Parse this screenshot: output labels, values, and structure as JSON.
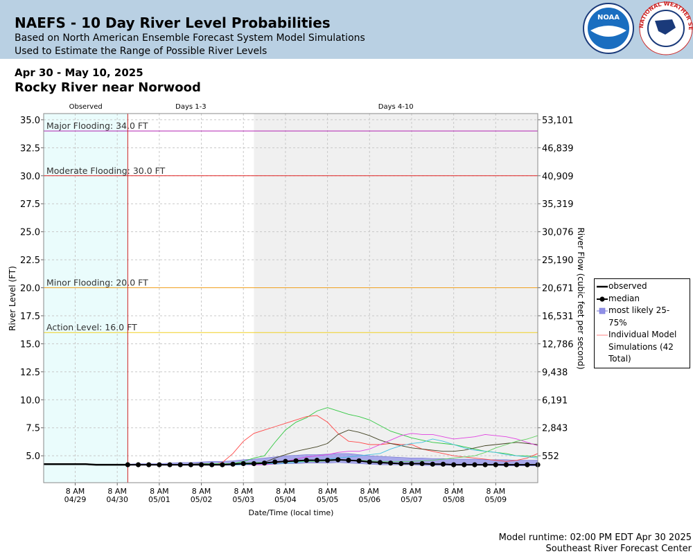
{
  "chart_data": {
    "type": "line",
    "title": "NAEFS - 10 Day River Level Probabilities",
    "subtitles": [
      "Based on North American Ensemble Forecast System Model Simulations",
      "Used to Estimate the Range of Possible River Levels"
    ],
    "noaa_logo": "NOAA",
    "nws_logo": "NATIONAL WEATHER SERVICE",
    "date_range": "Apr 30 - May 10, 2025",
    "location": "Rocky River near Norwood",
    "footer": [
      "Model runtime: 02:00 PM EDT Apr 30 2025",
      "Southeast River Forecast Center"
    ],
    "xlabel": "Date/Time (local time)",
    "ylabel": "River Level (FT)",
    "y2label": "River Flow (cubic feet per second)",
    "xlim": [
      "2025-04-28T14:00",
      "2025-05-10T08:00"
    ],
    "xticks": [
      {
        "value": "2025-04-29T08:00",
        "label": [
          "8 AM",
          "04/29"
        ]
      },
      {
        "value": "2025-04-30T08:00",
        "label": [
          "8 AM",
          "04/30"
        ]
      },
      {
        "value": "2025-05-01T08:00",
        "label": [
          "8 AM",
          "05/01"
        ]
      },
      {
        "value": "2025-05-02T08:00",
        "label": [
          "8 AM",
          "05/02"
        ]
      },
      {
        "value": "2025-05-03T08:00",
        "label": [
          "8 AM",
          "05/03"
        ]
      },
      {
        "value": "2025-05-04T08:00",
        "label": [
          "8 AM",
          "05/04"
        ]
      },
      {
        "value": "2025-05-05T08:00",
        "label": [
          "8 AM",
          "05/05"
        ]
      },
      {
        "value": "2025-05-06T08:00",
        "label": [
          "8 AM",
          "05/06"
        ]
      },
      {
        "value": "2025-05-07T08:00",
        "label": [
          "8 AM",
          "05/07"
        ]
      },
      {
        "value": "2025-05-08T08:00",
        "label": [
          "8 AM",
          "05/08"
        ]
      },
      {
        "value": "2025-05-09T08:00",
        "label": [
          "8 AM",
          "05/09"
        ]
      }
    ],
    "ylim": [
      2.6,
      35.55
    ],
    "yticks": [
      {
        "value": 35,
        "label": "35.0"
      },
      32.5,
      {
        "value": 30,
        "label": "30.0"
      },
      27.5,
      {
        "value": 25,
        "label": "25.0"
      },
      22.5,
      {
        "value": 20,
        "label": "20.0"
      },
      17.5,
      {
        "value": 15,
        "label": "15.0"
      },
      12.5,
      {
        "value": 10,
        "label": "10.0"
      },
      7.5,
      {
        "value": 5,
        "label": "5.0"
      }
    ],
    "y2ticks": [
      {
        "value": 53101,
        "label": "53,101"
      },
      {
        "value": 46839,
        "label": "46,839"
      },
      {
        "value": 40909,
        "label": "40,909"
      },
      {
        "value": 35319,
        "label": "35,319"
      },
      {
        "value": 30076,
        "label": "30,076"
      },
      {
        "value": 25190,
        "label": "25,190"
      },
      {
        "value": 20671,
        "label": "20,671"
      },
      {
        "value": 16531,
        "label": "16,531"
      },
      {
        "value": 12786,
        "label": "12,786"
      },
      {
        "value": 9438,
        "label": "9,438"
      },
      {
        "value": 6191,
        "label": "6,191"
      },
      {
        "value": 2843,
        "label": "2,843"
      },
      552
    ],
    "grid": true,
    "now": "2025-04-30T14:00",
    "now_color": "#cc2222",
    "regions": [
      {
        "label": "Observed",
        "end": "2025-04-30T14:00",
        "color": "#eafcfc"
      },
      {
        "label": "Days 1-3",
        "end": "2025-05-03T14:00",
        "color": "#ffffff"
      },
      {
        "label": "Days 4-10",
        "end": "2025-05-10T08:00",
        "color": "#f0f0f0"
      }
    ],
    "thresholds": [
      {
        "label": "Major Flooding: 34.0 FT",
        "value": 34,
        "color": "#b020b0"
      },
      {
        "label": "Moderate Flooding: 30.0 FT",
        "value": 30,
        "color": "#e02020"
      },
      {
        "label": "Minor Flooding: 20.0 FT",
        "value": 20,
        "color": "#f0a020"
      },
      {
        "label": "Action Level: 16.0 FT",
        "value": 16,
        "color": "#f0d020"
      }
    ],
    "observed": {
      "name": "observed",
      "color": "#000000",
      "x": [
        "2025-04-28T14:00",
        "2025-04-29T14:00",
        "2025-04-29T20:00",
        "2025-04-30T14:00"
      ],
      "values": [
        4.25,
        4.25,
        4.2,
        4.2
      ]
    },
    "x": [
      "2025-04-30T14:00",
      "2025-04-30T20:00",
      "2025-05-01T02:00",
      "2025-05-01T08:00",
      "2025-05-01T14:00",
      "2025-05-01T20:00",
      "2025-05-02T02:00",
      "2025-05-02T08:00",
      "2025-05-02T14:00",
      "2025-05-02T20:00",
      "2025-05-03T02:00",
      "2025-05-03T08:00",
      "2025-05-03T14:00",
      "2025-05-03T20:00",
      "2025-05-04T02:00",
      "2025-05-04T08:00",
      "2025-05-04T14:00",
      "2025-05-04T20:00",
      "2025-05-05T02:00",
      "2025-05-05T08:00",
      "2025-05-05T14:00",
      "2025-05-05T20:00",
      "2025-05-06T02:00",
      "2025-05-06T08:00",
      "2025-05-06T14:00",
      "2025-05-06T20:00",
      "2025-05-07T02:00",
      "2025-05-07T08:00",
      "2025-05-07T14:00",
      "2025-05-07T20:00",
      "2025-05-08T02:00",
      "2025-05-08T08:00",
      "2025-05-08T14:00",
      "2025-05-08T20:00",
      "2025-05-09T02:00",
      "2025-05-09T08:00",
      "2025-05-09T14:00",
      "2025-05-09T20:00",
      "2025-05-10T02:00",
      "2025-05-10T08:00"
    ],
    "median": {
      "name": "median",
      "color": "#000000",
      "values": [
        4.2,
        4.2,
        4.2,
        4.2,
        4.2,
        4.2,
        4.2,
        4.2,
        4.2,
        4.2,
        4.25,
        4.3,
        4.3,
        4.35,
        4.45,
        4.5,
        4.55,
        4.6,
        4.6,
        4.6,
        4.65,
        4.6,
        4.55,
        4.45,
        4.4,
        4.35,
        4.3,
        4.3,
        4.3,
        4.25,
        4.25,
        4.2,
        4.2,
        4.2,
        4.2,
        4.2,
        4.2,
        4.2,
        4.2,
        4.2
      ]
    },
    "band": {
      "name": "most likely 25-75%",
      "color": "#9090e8",
      "low": [
        4.15,
        4.15,
        4.15,
        4.15,
        4.15,
        4.15,
        4.15,
        4.15,
        4.15,
        4.15,
        4.15,
        4.2,
        4.2,
        4.2,
        4.25,
        4.3,
        4.3,
        4.35,
        4.35,
        4.35,
        4.4,
        4.35,
        4.3,
        4.25,
        4.2,
        4.2,
        4.2,
        4.2,
        4.15,
        4.15,
        4.15,
        4.15,
        4.15,
        4.15,
        4.15,
        4.15,
        4.1,
        4.1,
        4.1,
        4.1
      ],
      "high": [
        4.25,
        4.3,
        4.3,
        4.3,
        4.35,
        4.4,
        4.4,
        4.45,
        4.5,
        4.5,
        4.55,
        4.65,
        4.7,
        4.8,
        4.9,
        5.0,
        5.05,
        5.1,
        5.1,
        5.15,
        5.2,
        5.2,
        5.1,
        5.0,
        4.95,
        4.9,
        4.85,
        4.8,
        4.8,
        4.75,
        4.75,
        4.7,
        4.7,
        4.7,
        4.65,
        4.65,
        4.65,
        4.6,
        4.6,
        4.6
      ]
    },
    "simulations": {
      "name": "Individual Model Simulations (42 Total)",
      "color": "#ff8080",
      "series": [
        {
          "color": "#30c840",
          "values": [
            4.2,
            4.2,
            4.2,
            4.2,
            4.2,
            4.2,
            4.2,
            4.2,
            4.2,
            4.2,
            4.3,
            4.5,
            4.8,
            5.0,
            6.2,
            7.3,
            8.0,
            8.4,
            9.0,
            9.3,
            9.0,
            8.7,
            8.5,
            8.2,
            7.7,
            7.2,
            6.9,
            6.6,
            6.4,
            6.2,
            6.1,
            6.0,
            5.8,
            5.6,
            5.4,
            5.3,
            5.2,
            5.0,
            5.0,
            4.9
          ]
        },
        {
          "color": "#ff4848",
          "values": [
            4.2,
            4.2,
            4.2,
            4.2,
            4.2,
            4.2,
            4.2,
            4.2,
            4.2,
            4.4,
            5.2,
            6.3,
            7.0,
            7.3,
            7.6,
            7.9,
            8.2,
            8.5,
            8.6,
            8.0,
            7.0,
            6.3,
            6.2,
            6.0,
            6.0,
            6.1,
            6.0,
            6.0,
            5.6,
            5.4,
            5.2,
            5.0,
            4.9,
            4.8,
            4.7,
            4.6,
            4.5,
            4.6,
            4.8,
            5.2
          ]
        },
        {
          "color": "#404020",
          "values": [
            4.2,
            4.2,
            4.2,
            4.2,
            4.2,
            4.2,
            4.25,
            4.3,
            4.3,
            4.3,
            4.3,
            4.3,
            4.3,
            4.4,
            4.8,
            5.1,
            5.4,
            5.6,
            5.8,
            6.1,
            6.9,
            7.3,
            7.1,
            6.8,
            6.4,
            6.1,
            5.9,
            5.7,
            5.6,
            5.5,
            5.4,
            5.4,
            5.5,
            5.7,
            5.9,
            6.0,
            6.1,
            6.2,
            6.1,
            6.0
          ]
        },
        {
          "color": "#e040e0",
          "values": [
            4.2,
            4.2,
            4.2,
            4.2,
            4.2,
            4.2,
            4.2,
            4.2,
            4.2,
            4.2,
            4.2,
            4.2,
            4.2,
            4.2,
            4.3,
            4.5,
            4.7,
            4.9,
            5.0,
            5.1,
            5.3,
            5.4,
            5.4,
            5.6,
            6.0,
            6.4,
            6.8,
            7.0,
            6.9,
            6.9,
            6.7,
            6.5,
            6.6,
            6.7,
            6.9,
            6.8,
            6.7,
            6.5,
            6.2,
            5.9
          ]
        },
        {
          "color": "#40c0e0",
          "values": [
            4.2,
            4.2,
            4.2,
            4.2,
            4.2,
            4.2,
            4.2,
            4.2,
            4.2,
            4.2,
            4.2,
            4.2,
            4.25,
            4.3,
            4.3,
            4.35,
            4.4,
            4.5,
            4.6,
            4.7,
            4.8,
            4.9,
            5.0,
            5.1,
            5.2,
            5.6,
            5.9,
            6.1,
            6.2,
            6.5,
            6.3,
            6.0,
            5.7,
            5.5,
            5.4,
            5.3,
            5.1,
            5.0,
            4.9,
            4.8
          ]
        },
        {
          "color": "#60d060",
          "values": [
            4.2,
            4.2,
            4.2,
            4.2,
            4.2,
            4.2,
            4.2,
            4.25,
            4.3,
            4.3,
            4.3,
            4.35,
            4.4,
            4.4,
            4.4,
            4.45,
            4.5,
            4.5,
            4.5,
            4.55,
            4.6,
            4.6,
            4.6,
            4.55,
            4.5,
            4.5,
            4.5,
            4.5,
            4.55,
            4.6,
            4.7,
            4.8,
            4.9,
            5.0,
            5.3,
            5.7,
            6.0,
            6.3,
            6.5,
            6.8
          ]
        }
      ]
    }
  }
}
